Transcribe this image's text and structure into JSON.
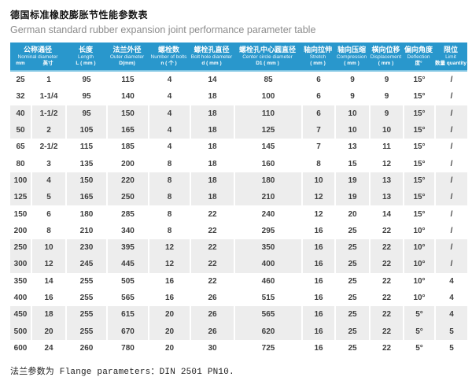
{
  "page": {
    "title_cn": "德国标准橡胶膨胀节性能参数表",
    "title_en": "German standard rubber expansion joint performance parameter table",
    "footer": "法兰参数为 Flange parameters：DIN 2501 PN10."
  },
  "colors": {
    "header_bg": "#2997cc",
    "header_border": "#7cc3e2",
    "row_alt_bg": "#ededed",
    "text": "#3d3d3d"
  },
  "table": {
    "header": {
      "col1": {
        "cn": "公称通径",
        "en": "Nominal diameter",
        "unit_mm": "mm",
        "unit_inch": "英寸"
      },
      "cols": [
        {
          "cn": "长度",
          "en": "Length",
          "unit": "L ( mm )"
        },
        {
          "cn": "法兰外径",
          "en": "Outer diameter",
          "unit": "D(mm)"
        },
        {
          "cn": "螺栓数",
          "en": "Number of bolts",
          "unit": "n ( 个 )"
        },
        {
          "cn": "螺栓孔直径",
          "en": "Bolt hole diameter",
          "unit": "d ( mm )"
        },
        {
          "cn": "螺栓孔中心圆直径",
          "en": "Center circle diameter",
          "unit": "D1 ( mm )"
        },
        {
          "cn": "轴向拉伸",
          "en": "Stretch",
          "unit": "( mm )"
        },
        {
          "cn": "轴向压缩",
          "en": "Compression",
          "unit": "( mm )"
        },
        {
          "cn": "横向位移",
          "en": "Displacement",
          "unit": "( mm )"
        },
        {
          "cn": "偏向角度",
          "en": "Deflection",
          "unit": "度°"
        },
        {
          "cn": "限位",
          "en": "Limit",
          "unit": "数量 quantity"
        }
      ]
    },
    "rows": [
      [
        "25",
        "1",
        "95",
        "115",
        "4",
        "14",
        "85",
        "6",
        "9",
        "9",
        "15°",
        "/"
      ],
      [
        "32",
        "1-1/4",
        "95",
        "140",
        "4",
        "18",
        "100",
        "6",
        "9",
        "9",
        "15°",
        "/"
      ],
      [
        "40",
        "1-1/2",
        "95",
        "150",
        "4",
        "18",
        "110",
        "6",
        "10",
        "9",
        "15°",
        "/"
      ],
      [
        "50",
        "2",
        "105",
        "165",
        "4",
        "18",
        "125",
        "7",
        "10",
        "10",
        "15°",
        "/"
      ],
      [
        "65",
        "2-1/2",
        "115",
        "185",
        "4",
        "18",
        "145",
        "7",
        "13",
        "11",
        "15°",
        "/"
      ],
      [
        "80",
        "3",
        "135",
        "200",
        "8",
        "18",
        "160",
        "8",
        "15",
        "12",
        "15°",
        "/"
      ],
      [
        "100",
        "4",
        "150",
        "220",
        "8",
        "18",
        "180",
        "10",
        "19",
        "13",
        "15°",
        "/"
      ],
      [
        "125",
        "5",
        "165",
        "250",
        "8",
        "18",
        "210",
        "12",
        "19",
        "13",
        "15°",
        "/"
      ],
      [
        "150",
        "6",
        "180",
        "285",
        "8",
        "22",
        "240",
        "12",
        "20",
        "14",
        "15°",
        "/"
      ],
      [
        "200",
        "8",
        "210",
        "340",
        "8",
        "22",
        "295",
        "16",
        "25",
        "22",
        "10°",
        "/"
      ],
      [
        "250",
        "10",
        "230",
        "395",
        "12",
        "22",
        "350",
        "16",
        "25",
        "22",
        "10°",
        "/"
      ],
      [
        "300",
        "12",
        "245",
        "445",
        "12",
        "22",
        "400",
        "16",
        "25",
        "22",
        "10°",
        "/"
      ],
      [
        "350",
        "14",
        "255",
        "505",
        "16",
        "22",
        "460",
        "16",
        "25",
        "22",
        "10°",
        "4"
      ],
      [
        "400",
        "16",
        "255",
        "565",
        "16",
        "26",
        "515",
        "16",
        "25",
        "22",
        "10°",
        "4"
      ],
      [
        "450",
        "18",
        "255",
        "615",
        "20",
        "26",
        "565",
        "16",
        "25",
        "22",
        "5°",
        "4"
      ],
      [
        "500",
        "20",
        "255",
        "670",
        "20",
        "26",
        "620",
        "16",
        "25",
        "22",
        "5°",
        "5"
      ],
      [
        "600",
        "24",
        "260",
        "780",
        "20",
        "30",
        "725",
        "16",
        "25",
        "22",
        "5°",
        "5"
      ]
    ]
  }
}
